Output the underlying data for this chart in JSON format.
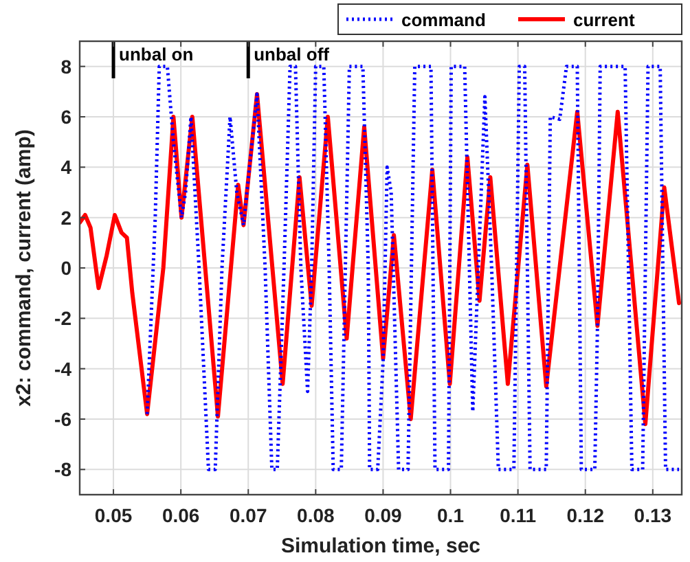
{
  "chart_data": {
    "type": "line",
    "xlabel": "Simulation time, sec",
    "ylabel": "x2: command, current (amp)",
    "xlim": [
      0.045,
      0.1343
    ],
    "ylim": [
      -9,
      9
    ],
    "xticks": [
      0.05,
      0.06,
      0.07,
      0.08,
      0.09,
      0.1,
      0.11,
      0.12,
      0.13
    ],
    "yticks": [
      -8,
      -6,
      -4,
      -2,
      0,
      2,
      4,
      6,
      8
    ],
    "grid": true,
    "legend": "top right",
    "ref_lines": [
      {
        "axis": "x",
        "value": 0.05,
        "label": "unbal on",
        "color": "#000000"
      },
      {
        "axis": "x",
        "value": 0.07,
        "label": "unbal off",
        "color": "#000000"
      }
    ],
    "series": [
      {
        "name": "command",
        "color": "#0000ff",
        "line_style": "dotted",
        "x": [
          0.055,
          0.0562,
          0.0568,
          0.058,
          0.0589,
          0.0601,
          0.0607,
          0.0615,
          0.0627,
          0.0641,
          0.0651,
          0.0661,
          0.0673,
          0.0683,
          0.0693,
          0.0713,
          0.0725,
          0.0735,
          0.0743,
          0.0753,
          0.0762,
          0.077,
          0.0778,
          0.0788,
          0.0794,
          0.08,
          0.0812,
          0.082,
          0.0826,
          0.0838,
          0.0844,
          0.085,
          0.087,
          0.0878,
          0.088,
          0.0892,
          0.09,
          0.0906,
          0.0912,
          0.0923,
          0.0937,
          0.0947,
          0.0971,
          0.0977,
          0.0997,
          0.1001,
          0.1021,
          0.1033,
          0.1051,
          0.1061,
          0.1071,
          0.1094,
          0.1102,
          0.111,
          0.1118,
          0.1142,
          0.1148,
          0.1162,
          0.1172,
          0.1188,
          0.1194,
          0.1214,
          0.1218,
          0.1222,
          0.1259,
          0.1269,
          0.1285,
          0.1293,
          0.1311,
          0.1319,
          0.1339
        ],
        "values": [
          -5.8,
          2,
          8,
          8,
          5,
          2,
          3,
          6,
          0,
          -8,
          -8,
          0,
          6,
          3,
          1.7,
          6.9,
          0,
          -8,
          -8,
          0,
          8,
          8,
          0,
          -4.9,
          0,
          8,
          8,
          0,
          -8,
          -8,
          0,
          8,
          8,
          0,
          -8,
          -8,
          -3.7,
          4,
          3,
          -8,
          -8,
          8,
          8,
          -8,
          -8,
          8,
          8,
          -5.7,
          6.8,
          0,
          -8,
          -8,
          8,
          8,
          -8,
          -8,
          6,
          5.9,
          8,
          8,
          -8,
          -8,
          -2.3,
          8,
          8,
          -8,
          -8,
          8,
          8,
          -8,
          -8
        ]
      },
      {
        "name": "current",
        "color": "#ff0000",
        "line_style": "solid",
        "x": [
          0.045,
          0.0458,
          0.0466,
          0.0478,
          0.049,
          0.0502,
          0.0512,
          0.052,
          0.0528,
          0.055,
          0.0574,
          0.0589,
          0.0601,
          0.0617,
          0.0655,
          0.0685,
          0.0693,
          0.0713,
          0.0751,
          0.0776,
          0.0794,
          0.0818,
          0.0846,
          0.0872,
          0.09,
          0.0916,
          0.0941,
          0.0973,
          0.0999,
          0.1025,
          0.1043,
          0.1059,
          0.1085,
          0.1114,
          0.1142,
          0.1188,
          0.1218,
          0.1248,
          0.1289,
          0.1317,
          0.1339
        ],
        "values": [
          1.8,
          2.1,
          1.6,
          -0.8,
          0.5,
          2.1,
          1.4,
          1.2,
          -1,
          -5.8,
          0,
          6,
          2,
          6,
          -5.9,
          3.3,
          1.7,
          6.9,
          -4.6,
          3.6,
          -1.5,
          6,
          -2.8,
          5.6,
          -3.6,
          1.3,
          -6,
          3.9,
          -4.6,
          4.4,
          -1.3,
          3.6,
          -4.6,
          4.1,
          -4.7,
          6.2,
          -2.3,
          6.2,
          -6.2,
          3.2,
          -1.4
        ]
      }
    ]
  }
}
